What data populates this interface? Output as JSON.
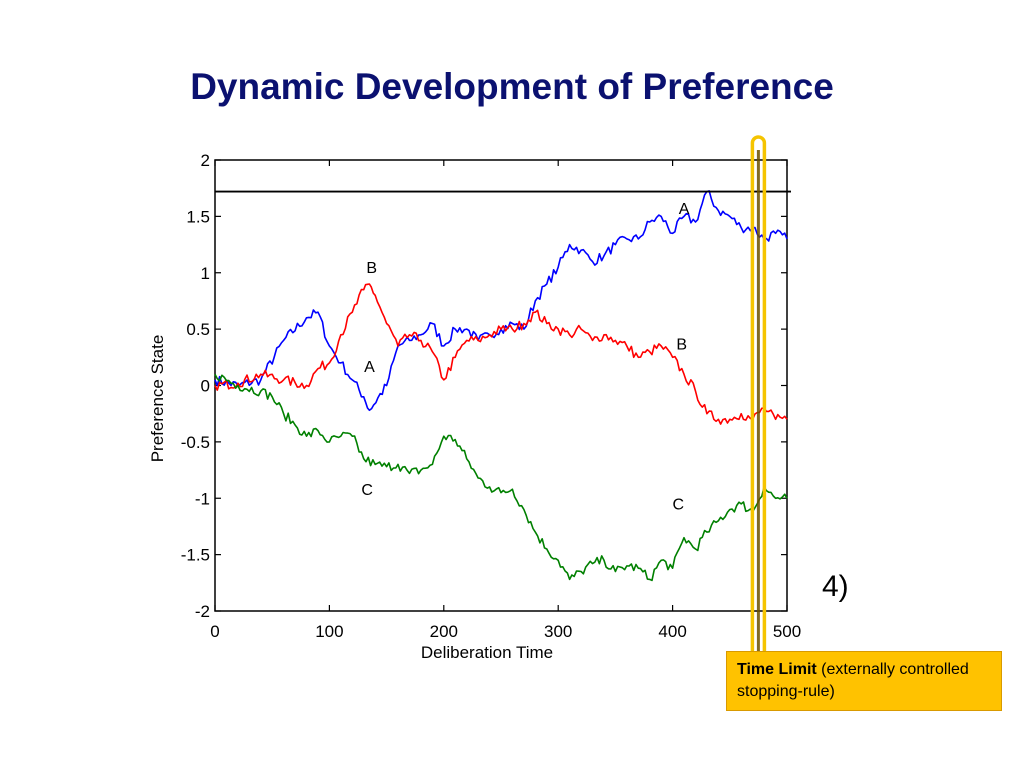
{
  "slide": {
    "title": "Dynamic Development of Preference",
    "callout_bold": "Time Limit",
    "callout_rest": " (externally controlled stopping-rule)",
    "stray_glyph": "4)"
  },
  "chart_data": {
    "type": "line",
    "xlabel": "Deliberation Time",
    "ylabel": "Preference State",
    "xlim": [
      0,
      500
    ],
    "ylim": [
      -2,
      2
    ],
    "xticks": [
      0,
      100,
      200,
      300,
      400,
      500
    ],
    "yticks": [
      -2,
      -1.5,
      -1,
      -0.5,
      0,
      0.5,
      1,
      1.5,
      2
    ],
    "ytick_labels": [
      "-2",
      "-1.5",
      "-1",
      "-0.5",
      "0",
      "0.5",
      "1",
      "1.5",
      "2"
    ],
    "threshold": 1.72,
    "time_limit": 475,
    "grid": false,
    "colors": {
      "A": "#0000ff",
      "B": "#ff0000",
      "C": "#008000",
      "threshold": "#000000",
      "highlight": "#f5c400"
    },
    "series": [
      {
        "name": "A",
        "x": [
          0,
          20,
          40,
          60,
          80,
          90,
          100,
          110,
          120,
          130,
          135,
          150,
          160,
          170,
          180,
          190,
          200,
          210,
          220,
          230,
          240,
          250,
          260,
          270,
          280,
          290,
          300,
          310,
          320,
          330,
          340,
          350,
          360,
          370,
          380,
          390,
          400,
          410,
          420,
          430,
          440,
          450,
          460,
          470,
          480,
          490,
          500
        ],
        "values": [
          0.05,
          0.0,
          0.05,
          0.4,
          0.6,
          0.65,
          0.35,
          0.2,
          0.05,
          -0.1,
          -0.22,
          0.0,
          0.35,
          0.4,
          0.45,
          0.55,
          0.35,
          0.5,
          0.5,
          0.4,
          0.45,
          0.5,
          0.55,
          0.5,
          0.75,
          0.9,
          1.05,
          1.25,
          1.2,
          1.1,
          1.15,
          1.25,
          1.3,
          1.3,
          1.45,
          1.5,
          1.35,
          1.5,
          1.45,
          1.72,
          1.55,
          1.5,
          1.4,
          1.4,
          1.3,
          1.35,
          1.3
        ]
      },
      {
        "name": "B",
        "x": [
          0,
          20,
          40,
          60,
          80,
          90,
          100,
          110,
          120,
          130,
          135,
          140,
          150,
          160,
          170,
          180,
          190,
          200,
          210,
          220,
          230,
          240,
          250,
          260,
          270,
          280,
          290,
          300,
          310,
          320,
          330,
          340,
          350,
          360,
          370,
          380,
          390,
          400,
          410,
          420,
          430,
          440,
          450,
          460,
          470,
          480,
          490,
          500
        ],
        "values": [
          0.0,
          0.02,
          0.1,
          0.05,
          0.0,
          0.15,
          0.2,
          0.45,
          0.65,
          0.85,
          0.9,
          0.8,
          0.55,
          0.35,
          0.45,
          0.4,
          0.3,
          0.05,
          0.25,
          0.4,
          0.4,
          0.45,
          0.5,
          0.5,
          0.55,
          0.65,
          0.55,
          0.5,
          0.45,
          0.5,
          0.4,
          0.45,
          0.4,
          0.35,
          0.25,
          0.3,
          0.35,
          0.25,
          0.1,
          -0.05,
          -0.25,
          -0.3,
          -0.3,
          -0.25,
          -0.3,
          -0.2,
          -0.3,
          -0.3
        ]
      },
      {
        "name": "C",
        "x": [
          0,
          20,
          40,
          50,
          60,
          70,
          80,
          90,
          100,
          110,
          120,
          130,
          140,
          150,
          160,
          170,
          180,
          190,
          200,
          210,
          220,
          230,
          240,
          250,
          260,
          270,
          280,
          290,
          300,
          310,
          320,
          330,
          340,
          350,
          360,
          370,
          380,
          390,
          400,
          410,
          420,
          430,
          440,
          450,
          460,
          470,
          480,
          490,
          500
        ],
        "values": [
          0.1,
          0.0,
          -0.05,
          -0.1,
          -0.25,
          -0.35,
          -0.45,
          -0.4,
          -0.5,
          -0.45,
          -0.45,
          -0.65,
          -0.7,
          -0.72,
          -0.7,
          -0.78,
          -0.75,
          -0.7,
          -0.45,
          -0.48,
          -0.65,
          -0.82,
          -0.9,
          -0.95,
          -0.92,
          -1.1,
          -1.3,
          -1.45,
          -1.55,
          -1.72,
          -1.65,
          -1.58,
          -1.55,
          -1.65,
          -1.6,
          -1.62,
          -1.72,
          -1.55,
          -1.62,
          -1.35,
          -1.45,
          -1.3,
          -1.2,
          -1.1,
          -1.05,
          -1.12,
          -0.9,
          -1.0,
          -1.0
        ]
      }
    ],
    "annotations": [
      {
        "text": "A",
        "x": 410,
        "y": 1.52
      },
      {
        "text": "B",
        "x": 137,
        "y": 1.0
      },
      {
        "text": "A",
        "x": 135,
        "y": 0.12
      },
      {
        "text": "B",
        "x": 408,
        "y": 0.32
      },
      {
        "text": "C",
        "x": 133,
        "y": -0.97
      },
      {
        "text": "C",
        "x": 405,
        "y": -1.1
      }
    ]
  }
}
